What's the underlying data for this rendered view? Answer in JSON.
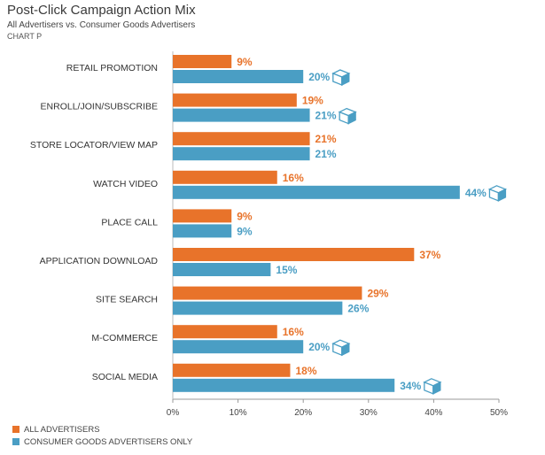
{
  "header": {
    "title": "Post-Click Campaign Action Mix",
    "subtitle": "All Advertisers vs. Consumer Goods Advertisers",
    "chart_label": "CHART P"
  },
  "colors": {
    "all_advertisers": "#e8732a",
    "consumer_goods": "#4a9ec4",
    "box_icon": "#4a9ec4"
  },
  "chart_data": {
    "type": "bar",
    "orientation": "horizontal",
    "title": "Post-Click Campaign Action Mix",
    "subtitle": "All Advertisers vs. Consumer Goods Advertisers",
    "categories": [
      "RETAIL PROMOTION",
      "ENROLL/JOIN/SUBSCRIBE",
      "STORE LOCATOR/VIEW MAP",
      "WATCH VIDEO",
      "PLACE CALL",
      "APPLICATION DOWNLOAD",
      "SITE SEARCH",
      "M-COMMERCE",
      "SOCIAL MEDIA"
    ],
    "series": [
      {
        "name": "ALL ADVERTISERS",
        "values": [
          9,
          19,
          21,
          16,
          9,
          37,
          29,
          16,
          18
        ]
      },
      {
        "name": "CONSUMER GOODS ADVERTISERS ONLY",
        "values": [
          20,
          21,
          21,
          44,
          9,
          15,
          26,
          20,
          34
        ]
      }
    ],
    "data_labels": [
      [
        "9%",
        "19%",
        "21%",
        "16%",
        "9%",
        "37%",
        "29%",
        "16%",
        "18%"
      ],
      [
        "20%",
        "21%",
        "21%",
        "44%",
        "9%",
        "15%",
        "26%",
        "20%",
        "34%"
      ]
    ],
    "box_icon_flags": [
      true,
      true,
      false,
      true,
      false,
      false,
      false,
      true,
      true
    ],
    "xlim": [
      0,
      50
    ],
    "x_ticks": [
      0,
      10,
      20,
      30,
      40,
      50
    ],
    "x_tick_labels": [
      "0%",
      "10%",
      "20%",
      "30%",
      "40%",
      "50%"
    ],
    "grid": false,
    "legend_placement": "bottom-left"
  },
  "legend": {
    "items": [
      {
        "label": "ALL ADVERTISERS"
      },
      {
        "label": "CONSUMER GOODS ADVERTISERS ONLY"
      }
    ]
  }
}
